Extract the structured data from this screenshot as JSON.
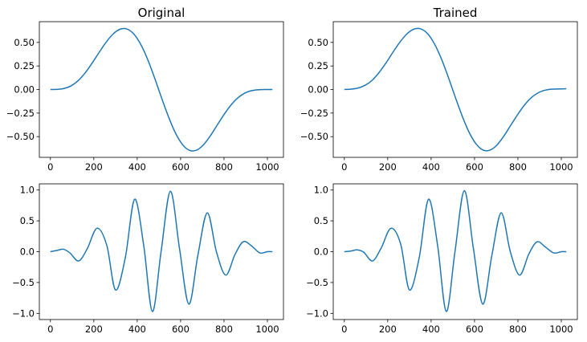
{
  "figure": {
    "line_color": "#1f77b4",
    "axes_color": "#000000",
    "background": "#ffffff"
  },
  "chart_data": [
    {
      "type": "line",
      "title": "Original",
      "xlabel": "",
      "ylabel": "",
      "xlim": [
        -51,
        1074
      ],
      "ylim": [
        -0.72,
        0.72
      ],
      "xticks": [
        0,
        200,
        400,
        600,
        800,
        1000
      ],
      "xtick_labels": [
        "0",
        "200",
        "400",
        "600",
        "800",
        "1000"
      ],
      "yticks": [
        -0.5,
        -0.25,
        0.0,
        0.25,
        0.5
      ],
      "ytick_labels": [
        "−0.50",
        "−0.25",
        "0.00",
        "0.25",
        "0.50"
      ],
      "grid": false,
      "series": [
        {
          "x": [
            0,
            32,
            64,
            96,
            128,
            160,
            192,
            224,
            256,
            288,
            320,
            352,
            384,
            416,
            448,
            480,
            512,
            544,
            576,
            608,
            640,
            672,
            704,
            736,
            768,
            800,
            832,
            864,
            896,
            928,
            960,
            992,
            1023
          ],
          "y": [
            0.0,
            0.002,
            0.012,
            0.04,
            0.094,
            0.176,
            0.28,
            0.392,
            0.5,
            0.587,
            0.639,
            0.643,
            0.59,
            0.48,
            0.32,
            0.124,
            -0.087,
            -0.288,
            -0.46,
            -0.582,
            -0.645,
            -0.645,
            -0.59,
            -0.495,
            -0.38,
            -0.266,
            -0.165,
            -0.088,
            -0.038,
            -0.012,
            -0.002,
            0.0,
            0.0
          ]
        }
      ]
    },
    {
      "type": "line",
      "title": "Trained",
      "xlabel": "",
      "ylabel": "",
      "xlim": [
        -51,
        1074
      ],
      "ylim": [
        -0.72,
        0.72
      ],
      "xticks": [
        0,
        200,
        400,
        600,
        800,
        1000
      ],
      "xtick_labels": [
        "0",
        "200",
        "400",
        "600",
        "800",
        "1000"
      ],
      "yticks": [
        -0.5,
        -0.25,
        0.0,
        0.25,
        0.5
      ],
      "ytick_labels": [
        "−0.50",
        "−0.25",
        "0.00",
        "0.25",
        "0.50"
      ],
      "grid": false,
      "series": [
        {
          "x": [
            0,
            32,
            64,
            96,
            128,
            160,
            192,
            224,
            256,
            288,
            320,
            352,
            384,
            416,
            448,
            480,
            512,
            544,
            576,
            608,
            640,
            672,
            704,
            736,
            768,
            800,
            832,
            864,
            896,
            928,
            960,
            992,
            1023
          ],
          "y": [
            0.0,
            0.004,
            0.016,
            0.045,
            0.097,
            0.18,
            0.282,
            0.395,
            0.502,
            0.589,
            0.64,
            0.644,
            0.592,
            0.482,
            0.322,
            0.126,
            -0.085,
            -0.286,
            -0.458,
            -0.58,
            -0.643,
            -0.643,
            -0.588,
            -0.492,
            -0.376,
            -0.262,
            -0.16,
            -0.082,
            -0.032,
            -0.006,
            0.004,
            0.006,
            0.008
          ]
        }
      ]
    },
    {
      "type": "line",
      "title": "",
      "xlabel": "",
      "ylabel": "",
      "xlim": [
        -51,
        1074
      ],
      "ylim": [
        -1.1,
        1.1
      ],
      "xticks": [
        0,
        200,
        400,
        600,
        800,
        1000
      ],
      "xtick_labels": [
        "0",
        "200",
        "400",
        "600",
        "800",
        "1000"
      ],
      "yticks": [
        -1.0,
        -0.5,
        0.0,
        0.5,
        1.0
      ],
      "ytick_labels": [
        "−1.0",
        "−0.5",
        "0.0",
        "0.5",
        "1.0"
      ],
      "grid": false,
      "series": [
        {
          "x": [
            0,
            30,
            60,
            90,
            130,
            170,
            215,
            260,
            300,
            345,
            388,
            430,
            470,
            510,
            553,
            595,
            638,
            680,
            723,
            765,
            808,
            850,
            888,
            925,
            965,
            1000,
            1023
          ],
          "y": [
            0.0,
            0.02,
            0.04,
            -0.02,
            -0.15,
            0.05,
            0.38,
            0.1,
            -0.62,
            -0.1,
            0.85,
            0.1,
            -0.97,
            0.0,
            0.98,
            0.05,
            -0.85,
            -0.05,
            0.63,
            0.0,
            -0.38,
            -0.05,
            0.16,
            0.1,
            -0.02,
            0.0,
            0.0
          ]
        }
      ]
    },
    {
      "type": "line",
      "title": "",
      "xlabel": "",
      "ylabel": "",
      "xlim": [
        -51,
        1074
      ],
      "ylim": [
        -1.1,
        1.1
      ],
      "xticks": [
        0,
        200,
        400,
        600,
        800,
        1000
      ],
      "xtick_labels": [
        "0",
        "200",
        "400",
        "600",
        "800",
        "1000"
      ],
      "yticks": [
        -1.0,
        -0.5,
        0.0,
        0.5,
        1.0
      ],
      "ytick_labels": [
        "−1.0",
        "−0.5",
        "0.0",
        "0.5",
        "1.0"
      ],
      "grid": false,
      "series": [
        {
          "x": [
            0,
            30,
            60,
            90,
            130,
            170,
            215,
            260,
            300,
            345,
            388,
            430,
            470,
            510,
            553,
            595,
            638,
            680,
            723,
            765,
            808,
            850,
            888,
            925,
            965,
            1000,
            1023
          ],
          "y": [
            0.0,
            0.01,
            0.03,
            -0.01,
            -0.15,
            0.06,
            0.38,
            0.12,
            -0.62,
            -0.1,
            0.85,
            0.1,
            -0.97,
            0.0,
            0.99,
            0.05,
            -0.85,
            -0.06,
            0.63,
            0.0,
            -0.38,
            -0.04,
            0.16,
            0.08,
            -0.02,
            0.0,
            0.0
          ]
        }
      ]
    }
  ]
}
